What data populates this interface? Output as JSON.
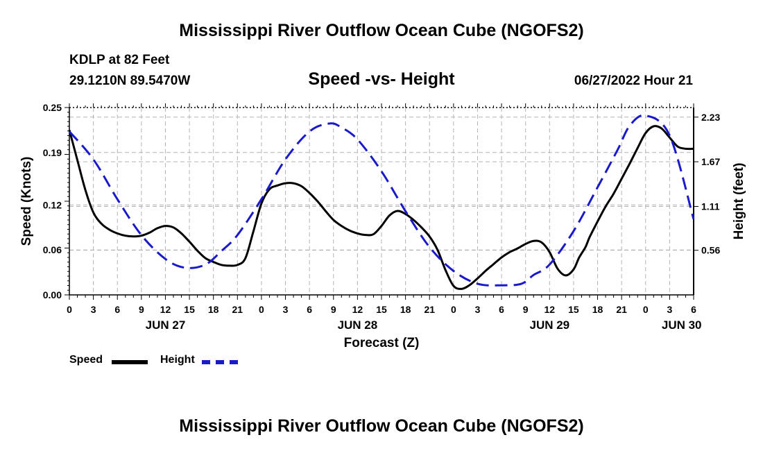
{
  "title": "Mississippi River Outflow Ocean Cube (NGOFS2)",
  "station": "KDLP at 82 Feet",
  "coords": "29.1210N  89.5470W",
  "stamp": "06/27/2022 Hour 21",
  "chart_data": {
    "type": "line",
    "title": "Speed -vs- Height",
    "xlabel": "Forecast (Z)",
    "ylabel_left": "Speed (Knots)",
    "ylabel_right": "Height (feet)",
    "xlim": [
      0,
      78
    ],
    "ylim_left": [
      0,
      0.25
    ],
    "ylim_right": [
      0,
      2.35
    ],
    "x_ticks": [
      0,
      3,
      6,
      9,
      12,
      15,
      18,
      21,
      24,
      27,
      30,
      33,
      36,
      39,
      42,
      45,
      48,
      51,
      54,
      57,
      60,
      63,
      66,
      69,
      72,
      75,
      78
    ],
    "x_tick_labels": [
      "0",
      "3",
      "6",
      "9",
      "12",
      "15",
      "18",
      "21",
      "0",
      "3",
      "6",
      "9",
      "12",
      "15",
      "18",
      "21",
      "0",
      "3",
      "6",
      "9",
      "12",
      "15",
      "18",
      "21",
      "0",
      "3",
      "6"
    ],
    "date_labels": [
      {
        "x": 12,
        "text": "JUN 27"
      },
      {
        "x": 36,
        "text": "JUN 28"
      },
      {
        "x": 60,
        "text": "JUN 29"
      },
      {
        "x": 76.5,
        "text": "JUN 30"
      }
    ],
    "y_left_ticks": [
      0.0,
      0.06,
      0.12,
      0.19,
      0.25
    ],
    "y_left_tick_labels": [
      "0.00",
      "0.06",
      "0.12",
      "0.19",
      "0.25"
    ],
    "y_right_ticks": [
      0.56,
      1.11,
      1.67,
      2.23
    ],
    "y_right_tick_labels": [
      "0.56",
      "1.11",
      "1.67",
      "2.23"
    ],
    "grid": true,
    "series": [
      {
        "name": "Speed",
        "axis": "left",
        "color": "#000000",
        "style": "solid",
        "x": [
          0,
          1,
          2,
          3,
          4,
          5,
          6,
          7,
          8,
          9,
          10,
          11,
          12,
          13,
          14,
          15,
          16,
          17,
          18,
          19,
          20,
          21,
          22,
          23,
          24,
          25,
          26,
          27,
          28,
          29,
          30,
          31,
          32,
          33,
          34,
          35,
          36,
          37,
          38,
          39,
          40,
          41,
          42,
          43,
          44,
          45,
          46,
          47,
          48,
          49,
          50,
          51,
          52,
          53,
          54,
          55,
          56,
          57,
          58,
          59,
          60,
          61,
          62,
          63,
          63.7,
          64.5,
          65,
          66,
          67,
          68,
          69,
          70,
          71,
          72,
          73,
          74,
          75,
          76,
          77,
          78
        ],
        "values": [
          0.22,
          0.18,
          0.14,
          0.11,
          0.095,
          0.087,
          0.082,
          0.079,
          0.078,
          0.079,
          0.083,
          0.089,
          0.092,
          0.09,
          0.082,
          0.071,
          0.059,
          0.049,
          0.044,
          0.04,
          0.039,
          0.04,
          0.049,
          0.085,
          0.122,
          0.141,
          0.146,
          0.149,
          0.149,
          0.145,
          0.136,
          0.125,
          0.112,
          0.1,
          0.092,
          0.086,
          0.082,
          0.08,
          0.081,
          0.092,
          0.106,
          0.112,
          0.108,
          0.1,
          0.09,
          0.078,
          0.06,
          0.033,
          0.012,
          0.008,
          0.013,
          0.022,
          0.032,
          0.041,
          0.05,
          0.057,
          0.062,
          0.068,
          0.072,
          0.07,
          0.057,
          0.035,
          0.026,
          0.034,
          0.05,
          0.064,
          0.077,
          0.098,
          0.118,
          0.135,
          0.155,
          0.175,
          0.196,
          0.216,
          0.225,
          0.222,
          0.21,
          0.198,
          0.195,
          0.195
        ]
      },
      {
        "name": "Height",
        "axis": "right",
        "color": "#1a1acc",
        "style": "dashed",
        "x": [
          0,
          3,
          6,
          9,
          12,
          14.5,
          17,
          19,
          21,
          24,
          27,
          30,
          32.5,
          34,
          36,
          39,
          42,
          45,
          48,
          51,
          54,
          56.5,
          58,
          60,
          63,
          66,
          68.5,
          70,
          72,
          75,
          78
        ],
        "values": [
          2.05,
          1.7,
          1.2,
          0.75,
          0.45,
          0.34,
          0.38,
          0.55,
          0.75,
          1.2,
          1.7,
          2.05,
          2.15,
          2.1,
          1.95,
          1.55,
          1.05,
          0.6,
          0.3,
          0.14,
          0.12,
          0.14,
          0.25,
          0.38,
          0.8,
          1.35,
          1.82,
          2.12,
          2.25,
          2.0,
          0.95
        ]
      }
    ],
    "legend": [
      "Speed",
      "Height"
    ],
    "legend_position": "bottom-left"
  }
}
